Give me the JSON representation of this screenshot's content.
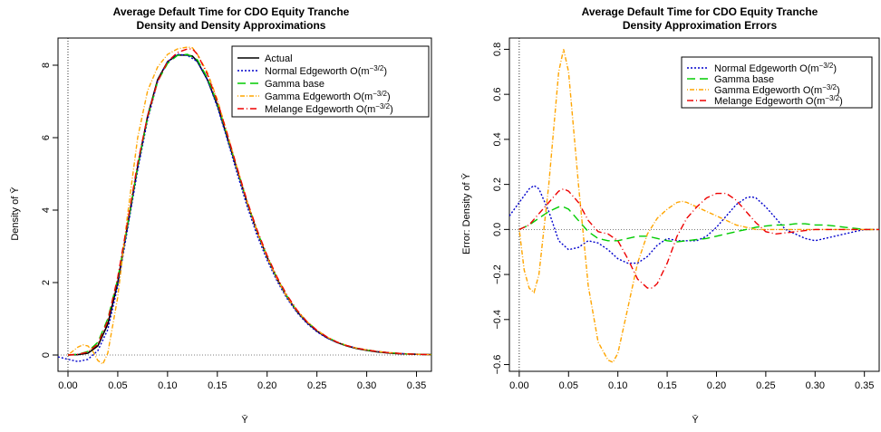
{
  "chart_data": [
    {
      "type": "line",
      "title": "Average Default Time for CDO Equity Tranche",
      "subtitle": "Density and Density Approximations",
      "xlabel": "Ȳ",
      "ylabel": "Density of Ȳ",
      "xlim": [
        -0.01,
        0.365
      ],
      "ylim": [
        -0.45,
        8.75
      ],
      "xticks": [
        "0.00",
        "0.05",
        "0.10",
        "0.15",
        "0.20",
        "0.25",
        "0.30",
        "0.35"
      ],
      "yticks": [
        "0",
        "2",
        "4",
        "6",
        "8"
      ],
      "reference_lines": {
        "vertical_x": 0,
        "horizontal_y": 0
      },
      "legend_position": "top-right",
      "series": [
        {
          "name": "Actual",
          "color": "#000000",
          "dash": "solid",
          "x": [
            0.0,
            0.01,
            0.02,
            0.03,
            0.04,
            0.05,
            0.06,
            0.07,
            0.08,
            0.09,
            0.1,
            0.11,
            0.12,
            0.125,
            0.13,
            0.14,
            0.15,
            0.16,
            0.17,
            0.18,
            0.19,
            0.2,
            0.21,
            0.22,
            0.23,
            0.24,
            0.25,
            0.26,
            0.27,
            0.28,
            0.29,
            0.3,
            0.31,
            0.32,
            0.33,
            0.34,
            0.35,
            0.365
          ],
          "y": [
            0.0,
            0.01,
            0.05,
            0.25,
            0.85,
            2.0,
            3.6,
            5.2,
            6.6,
            7.6,
            8.1,
            8.28,
            8.28,
            8.25,
            8.1,
            7.6,
            6.9,
            6.0,
            5.1,
            4.2,
            3.4,
            2.7,
            2.1,
            1.6,
            1.2,
            0.9,
            0.66,
            0.48,
            0.35,
            0.25,
            0.18,
            0.13,
            0.09,
            0.06,
            0.04,
            0.03,
            0.02,
            0.01
          ]
        },
        {
          "name": "Normal Edgeworth O(m^-3/2)",
          "label_main": "Normal Edgeworth O(m",
          "label_exp": "−3/2",
          "label_tail": ")",
          "color": "#0000cc",
          "dash": "2,2",
          "x": [
            -0.01,
            0.0,
            0.01,
            0.02,
            0.03,
            0.04,
            0.05,
            0.06,
            0.07,
            0.08,
            0.09,
            0.1,
            0.11,
            0.12,
            0.13,
            0.14,
            0.15,
            0.16,
            0.17,
            0.18,
            0.19,
            0.2,
            0.21,
            0.22,
            0.23,
            0.24,
            0.25,
            0.26,
            0.27,
            0.28,
            0.29,
            0.3,
            0.31,
            0.32,
            0.33,
            0.34,
            0.35,
            0.365
          ],
          "y": [
            -0.05,
            -0.12,
            -0.18,
            -0.12,
            0.12,
            0.7,
            1.9,
            3.5,
            5.1,
            6.5,
            7.55,
            8.1,
            8.3,
            8.27,
            8.1,
            7.6,
            6.85,
            5.95,
            5.0,
            4.1,
            3.3,
            2.62,
            2.04,
            1.56,
            1.17,
            0.87,
            0.64,
            0.47,
            0.35,
            0.26,
            0.19,
            0.14,
            0.1,
            0.07,
            0.05,
            0.03,
            0.02,
            0.01
          ]
        },
        {
          "name": "Gamma base",
          "color": "#00cc00",
          "dash": "9,5",
          "x": [
            0.0,
            0.01,
            0.02,
            0.03,
            0.04,
            0.05,
            0.06,
            0.07,
            0.08,
            0.09,
            0.1,
            0.11,
            0.12,
            0.13,
            0.14,
            0.15,
            0.16,
            0.17,
            0.18,
            0.19,
            0.2,
            0.21,
            0.22,
            0.23,
            0.24,
            0.25,
            0.26,
            0.27,
            0.28,
            0.29,
            0.3,
            0.31,
            0.32,
            0.33,
            0.34,
            0.35,
            0.365
          ],
          "y": [
            0.0,
            0.02,
            0.1,
            0.35,
            1.0,
            2.1,
            3.6,
            5.2,
            6.55,
            7.55,
            8.05,
            8.27,
            8.3,
            8.15,
            7.65,
            6.95,
            6.05,
            5.12,
            4.22,
            3.42,
            2.72,
            2.12,
            1.62,
            1.22,
            0.92,
            0.68,
            0.5,
            0.36,
            0.26,
            0.19,
            0.14,
            0.1,
            0.07,
            0.05,
            0.03,
            0.02,
            0.01
          ]
        },
        {
          "name": "Gamma Edgeworth O(m^-3/2)",
          "label_main": "Gamma Edgeworth O(m",
          "label_exp": "−3/2",
          "label_tail": ")",
          "color": "#ffa500",
          "dash": "1,2,5,2",
          "x": [
            0.0,
            0.01,
            0.015,
            0.02,
            0.025,
            0.03,
            0.035,
            0.04,
            0.05,
            0.06,
            0.07,
            0.08,
            0.09,
            0.1,
            0.11,
            0.12,
            0.125,
            0.13,
            0.14,
            0.15,
            0.16,
            0.17,
            0.18,
            0.19,
            0.2,
            0.21,
            0.22,
            0.23,
            0.24,
            0.25,
            0.26,
            0.27,
            0.28,
            0.29,
            0.3,
            0.31,
            0.32,
            0.33,
            0.34,
            0.35,
            0.365
          ],
          "y": [
            0.0,
            0.22,
            0.28,
            0.25,
            0.1,
            -0.15,
            -0.25,
            0.05,
            1.6,
            3.9,
            6.0,
            7.3,
            7.95,
            8.3,
            8.45,
            8.5,
            8.48,
            8.3,
            7.8,
            7.05,
            6.1,
            5.15,
            4.22,
            3.4,
            2.7,
            2.1,
            1.6,
            1.22,
            0.92,
            0.68,
            0.5,
            0.36,
            0.26,
            0.19,
            0.14,
            0.1,
            0.07,
            0.05,
            0.03,
            0.02,
            0.01
          ]
        },
        {
          "name": "Melange Edgeworth O(m^-3/2)",
          "label_main": "Melange Edgeworth O(m",
          "label_exp": "−3/2",
          "label_tail": ")",
          "color": "#ee0000",
          "dash": "7,3,1,3",
          "x": [
            0.0,
            0.01,
            0.02,
            0.03,
            0.04,
            0.05,
            0.06,
            0.07,
            0.08,
            0.09,
            0.1,
            0.11,
            0.12,
            0.125,
            0.13,
            0.14,
            0.15,
            0.16,
            0.17,
            0.18,
            0.19,
            0.2,
            0.21,
            0.22,
            0.23,
            0.24,
            0.25,
            0.26,
            0.27,
            0.28,
            0.29,
            0.3,
            0.31,
            0.32,
            0.33,
            0.34,
            0.35,
            0.365
          ],
          "y": [
            0.0,
            0.02,
            0.08,
            0.3,
            0.95,
            2.15,
            3.7,
            5.3,
            6.6,
            7.55,
            8.1,
            8.35,
            8.45,
            8.45,
            8.3,
            7.75,
            7.0,
            6.1,
            5.15,
            4.25,
            3.45,
            2.75,
            2.15,
            1.65,
            1.24,
            0.92,
            0.68,
            0.5,
            0.36,
            0.26,
            0.19,
            0.14,
            0.1,
            0.07,
            0.05,
            0.03,
            0.02,
            0.01
          ]
        }
      ]
    },
    {
      "type": "line",
      "title": "Average Default Time for CDO Equity Tranche",
      "subtitle": "Density Approximation Errors",
      "xlabel": "Ȳ",
      "ylabel": "Error: Density of Ȳ",
      "xlim": [
        -0.01,
        0.365
      ],
      "ylim": [
        -0.63,
        0.85
      ],
      "xticks": [
        "0.00",
        "0.05",
        "0.10",
        "0.15",
        "0.20",
        "0.25",
        "0.30",
        "0.35"
      ],
      "yticks": [
        "−0.6",
        "−0.4",
        "−0.2",
        "0.0",
        "0.2",
        "0.4",
        "0.6",
        "0.8"
      ],
      "reference_lines": {
        "vertical_x": 0,
        "horizontal_y": 0
      },
      "legend_position": "top-right",
      "series": [
        {
          "name": "Normal Edgeworth O(m^-3/2)",
          "label_main": "Normal Edgeworth O(m",
          "label_exp": "−3/2",
          "label_tail": ")",
          "color": "#0000cc",
          "dash": "2,2",
          "x": [
            -0.01,
            0.0,
            0.01,
            0.015,
            0.02,
            0.03,
            0.04,
            0.05,
            0.06,
            0.07,
            0.08,
            0.09,
            0.1,
            0.11,
            0.12,
            0.13,
            0.14,
            0.15,
            0.16,
            0.17,
            0.18,
            0.19,
            0.2,
            0.21,
            0.22,
            0.23,
            0.235,
            0.24,
            0.25,
            0.26,
            0.27,
            0.28,
            0.29,
            0.3,
            0.31,
            0.32,
            0.33,
            0.34,
            0.35,
            0.365
          ],
          "y": [
            0.06,
            0.12,
            0.18,
            0.195,
            0.18,
            0.08,
            -0.05,
            -0.09,
            -0.08,
            -0.05,
            -0.06,
            -0.09,
            -0.13,
            -0.15,
            -0.15,
            -0.12,
            -0.07,
            -0.04,
            -0.05,
            -0.05,
            -0.05,
            -0.03,
            0.01,
            0.06,
            0.11,
            0.14,
            0.145,
            0.14,
            0.1,
            0.05,
            0.0,
            -0.02,
            -0.04,
            -0.05,
            -0.04,
            -0.03,
            -0.02,
            -0.01,
            0.0,
            0.0
          ]
        },
        {
          "name": "Gamma base",
          "color": "#00cc00",
          "dash": "9,5",
          "x": [
            0.0,
            0.01,
            0.02,
            0.03,
            0.04,
            0.045,
            0.05,
            0.06,
            0.07,
            0.08,
            0.09,
            0.1,
            0.11,
            0.12,
            0.13,
            0.14,
            0.15,
            0.16,
            0.17,
            0.18,
            0.19,
            0.2,
            0.21,
            0.22,
            0.23,
            0.24,
            0.25,
            0.26,
            0.27,
            0.28,
            0.29,
            0.3,
            0.31,
            0.32,
            0.33,
            0.34,
            0.35,
            0.365
          ],
          "y": [
            0.0,
            0.02,
            0.05,
            0.08,
            0.1,
            0.1,
            0.09,
            0.04,
            -0.01,
            -0.04,
            -0.05,
            -0.05,
            -0.04,
            -0.03,
            -0.03,
            -0.04,
            -0.05,
            -0.055,
            -0.05,
            -0.045,
            -0.04,
            -0.03,
            -0.02,
            -0.01,
            0.0,
            0.01,
            0.015,
            0.02,
            0.02,
            0.025,
            0.025,
            0.02,
            0.02,
            0.015,
            0.01,
            0.005,
            0.0,
            0.0
          ]
        },
        {
          "name": "Gamma Edgeworth O(m^-3/2)",
          "label_main": "Gamma Edgeworth O(m",
          "label_exp": "−3/2",
          "label_tail": ")",
          "color": "#ffa500",
          "dash": "1,2,5,2",
          "x": [
            0.0,
            0.005,
            0.01,
            0.015,
            0.02,
            0.03,
            0.04,
            0.045,
            0.05,
            0.06,
            0.07,
            0.08,
            0.09,
            0.095,
            0.1,
            0.11,
            0.12,
            0.13,
            0.14,
            0.15,
            0.16,
            0.165,
            0.17,
            0.18,
            0.19,
            0.2,
            0.21,
            0.22,
            0.23,
            0.24,
            0.25,
            0.26,
            0.27,
            0.28,
            0.29,
            0.3,
            0.31,
            0.32,
            0.33,
            0.34,
            0.35,
            0.365
          ],
          "y": [
            0.0,
            -0.18,
            -0.26,
            -0.28,
            -0.2,
            0.2,
            0.7,
            0.8,
            0.7,
            0.2,
            -0.25,
            -0.5,
            -0.58,
            -0.59,
            -0.55,
            -0.35,
            -0.15,
            -0.02,
            0.05,
            0.09,
            0.12,
            0.125,
            0.12,
            0.1,
            0.08,
            0.06,
            0.04,
            0.02,
            0.01,
            0.0,
            0.0,
            0.0,
            0.0,
            0.0,
            0.0,
            0.0,
            0.0,
            0.0,
            0.0,
            0.0,
            0.0,
            0.0
          ]
        },
        {
          "name": "Melange Edgeworth O(m^-3/2)",
          "label_main": "Melange Edgeworth O(m",
          "label_exp": "−3/2",
          "label_tail": ")",
          "color": "#ee0000",
          "dash": "7,3,1,3",
          "x": [
            0.0,
            0.01,
            0.02,
            0.03,
            0.04,
            0.045,
            0.05,
            0.06,
            0.07,
            0.08,
            0.09,
            0.1,
            0.11,
            0.12,
            0.13,
            0.135,
            0.14,
            0.15,
            0.16,
            0.17,
            0.18,
            0.19,
            0.2,
            0.21,
            0.22,
            0.23,
            0.24,
            0.25,
            0.26,
            0.27,
            0.28,
            0.29,
            0.3,
            0.31,
            0.32,
            0.33,
            0.34,
            0.35,
            0.365
          ],
          "y": [
            0.0,
            0.02,
            0.07,
            0.12,
            0.17,
            0.18,
            0.17,
            0.12,
            0.04,
            -0.01,
            -0.02,
            -0.05,
            -0.13,
            -0.22,
            -0.26,
            -0.26,
            -0.24,
            -0.15,
            -0.03,
            0.05,
            0.1,
            0.14,
            0.16,
            0.16,
            0.13,
            0.08,
            0.03,
            -0.01,
            -0.02,
            -0.015,
            -0.01,
            -0.005,
            0.0,
            0.0,
            0.0,
            0.0,
            0.0,
            0.0,
            0.0
          ]
        }
      ]
    }
  ]
}
